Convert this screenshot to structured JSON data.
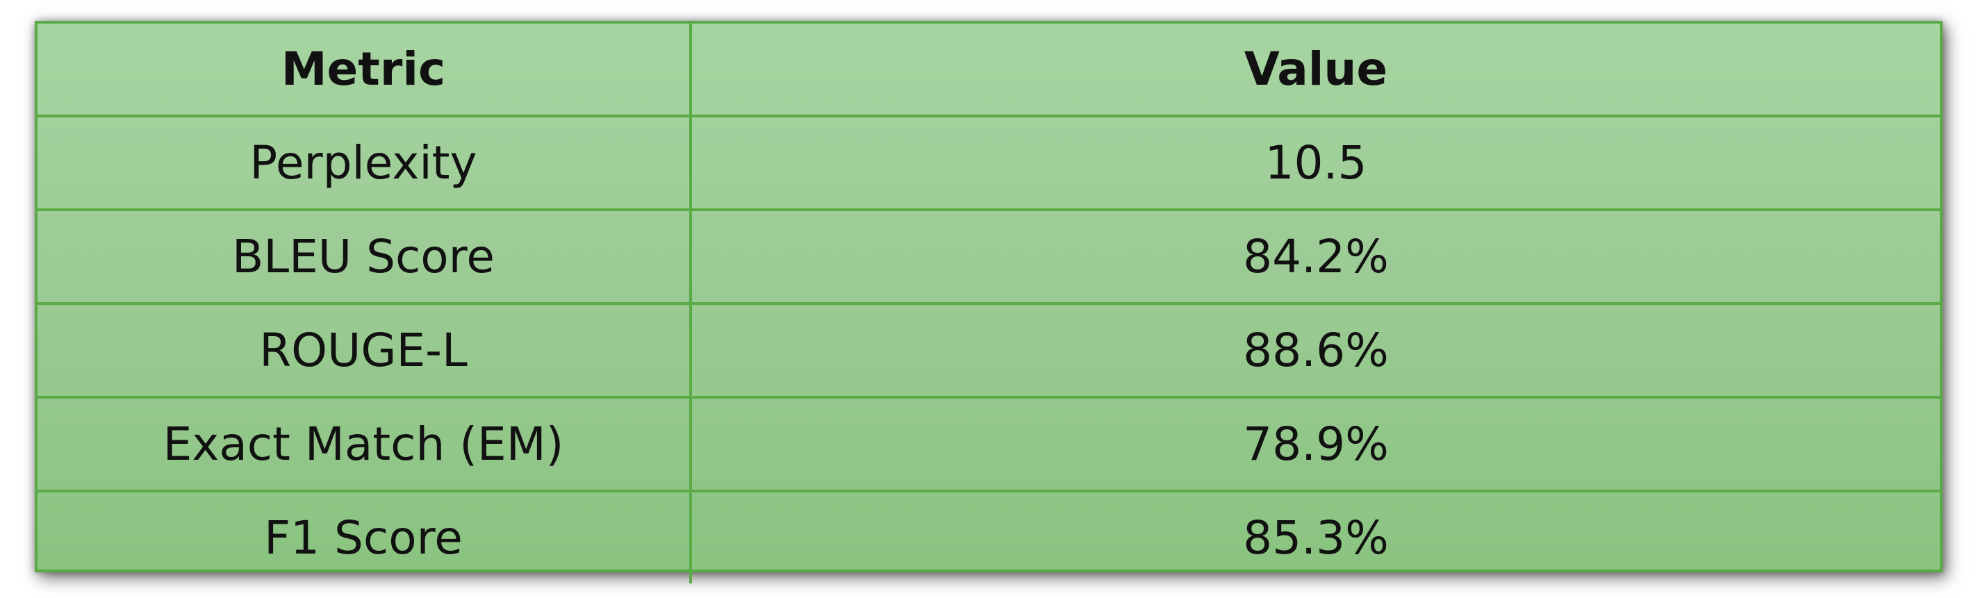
{
  "table": {
    "headers": {
      "metric": "Metric",
      "value": "Value"
    },
    "rows": [
      {
        "metric": "Perplexity",
        "value": "10.5"
      },
      {
        "metric": "BLEU Score",
        "value": "84.2%"
      },
      {
        "metric": "ROUGE-L",
        "value": "88.6%"
      },
      {
        "metric": "Exact Match (EM)",
        "value": "78.9%"
      },
      {
        "metric": "F1 Score",
        "value": "85.3%"
      }
    ]
  },
  "colors": {
    "border": "#5aab46",
    "fill_top": "#a6d5a1",
    "fill_bottom": "#8ac480",
    "text": "#111111"
  }
}
